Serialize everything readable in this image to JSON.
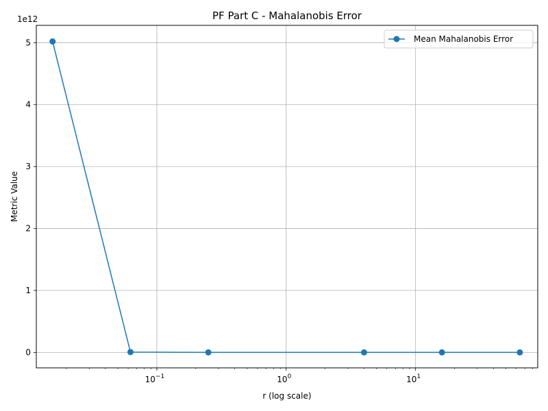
{
  "chart_data": {
    "type": "line",
    "title": "PF Part C - Mahalanobis Error",
    "xlabel": "r (log scale)",
    "ylabel": "Metric Value",
    "xscale": "log",
    "xlim": [
      0.0117,
      88
    ],
    "ylim": [
      -0.25,
      5.28
    ],
    "y_multiplier_label": "1e12",
    "grid": true,
    "legend_position": "top-right",
    "x_ticks": [
      {
        "value": 0.1,
        "base": "10",
        "exp": "−1"
      },
      {
        "value": 1,
        "base": "10",
        "exp": "0"
      },
      {
        "value": 10,
        "base": "10",
        "exp": "1"
      }
    ],
    "y_ticks": [
      0,
      1,
      2,
      3,
      4,
      5
    ],
    "series": [
      {
        "name": "Mean Mahalanobis Error",
        "color": "#1f77b4",
        "marker": "circle",
        "x": [
          0.015625,
          0.0625,
          0.25,
          4,
          16,
          64
        ],
        "y": [
          5.02,
          0.005,
          0.0,
          0.0,
          0.0,
          0.0
        ]
      }
    ]
  }
}
